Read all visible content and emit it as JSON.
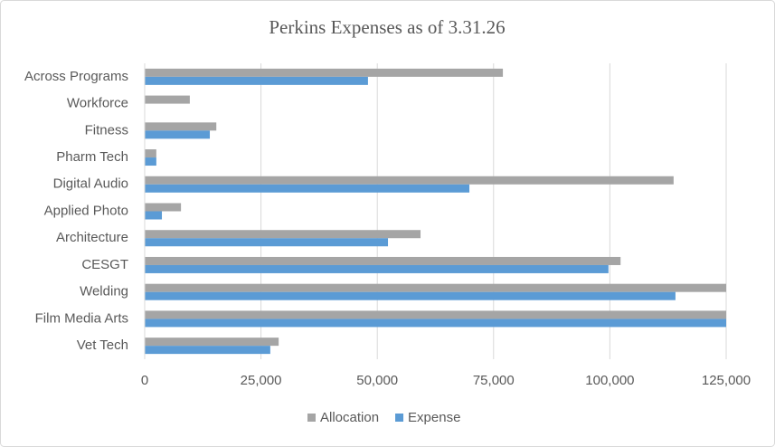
{
  "chart_data": {
    "type": "hbar",
    "title": "Perkins Expenses as of 3.31.26",
    "categories": [
      "Across Programs",
      "Workforce",
      "Fitness",
      "Pharm Tech",
      "Digital Audio",
      "Applied Photo",
      "Architecture",
      "CESGT",
      "Welding",
      "Film Media Arts",
      "Vet Tech"
    ],
    "series": [
      {
        "name": "Allocation",
        "color": "#a5a5a5",
        "values": [
          77000,
          9700,
          15400,
          2500,
          113700,
          7800,
          59300,
          102300,
          125000,
          125000,
          28800
        ]
      },
      {
        "name": "Expense",
        "color": "#5b9bd5",
        "values": [
          48000,
          0,
          14000,
          2500,
          69800,
          3700,
          52300,
          99700,
          114100,
          125000,
          27000
        ]
      }
    ],
    "xlim": [
      0,
      125000
    ],
    "xticks": [
      0,
      {
        "value": 25000,
        "label": "25,000"
      },
      {
        "value": 50000,
        "label": "50,000"
      },
      {
        "value": 75000,
        "label": "75,000"
      },
      {
        "value": 100000,
        "label": "100,000"
      },
      {
        "value": 125000,
        "label": "125,000"
      }
    ],
    "grid": true,
    "legend": "bottom"
  }
}
